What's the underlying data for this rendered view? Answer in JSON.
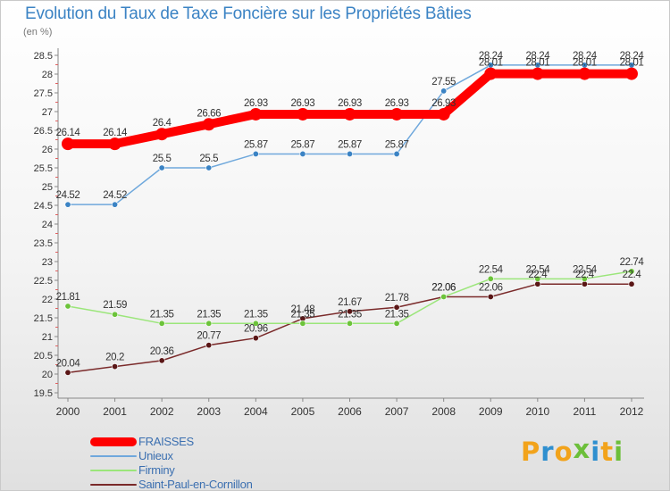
{
  "chart_data": {
    "type": "line",
    "title": "Evolution du Taux de Taxe Foncière sur les Propriétés Bâties",
    "unit_label": "(en %)",
    "x": [
      "2000",
      "2001",
      "2002",
      "2003",
      "2004",
      "2005",
      "2006",
      "2007",
      "2008",
      "2009",
      "2010",
      "2011",
      "2012"
    ],
    "ylim": [
      19.5,
      28.5
    ],
    "yticks": [
      "19.5",
      "20",
      "20.5",
      "21",
      "21.5",
      "22",
      "22.5",
      "23",
      "23.5",
      "24",
      "24.5",
      "25",
      "25.5",
      "26",
      "26.5",
      "27",
      "27.5",
      "28",
      "28.5"
    ],
    "grid": false,
    "legend_position": "bottom-left",
    "series": [
      {
        "name": "FRAISSES",
        "color": "#ff0000",
        "style": "thick",
        "values": [
          26.14,
          26.14,
          26.4,
          26.66,
          26.93,
          26.93,
          26.93,
          26.93,
          26.93,
          28.01,
          28.01,
          28.01,
          28.01
        ],
        "labels": [
          "26.14",
          "26.14",
          "26.4",
          "26.66",
          "26.93",
          "26.93",
          "26.93",
          "26.93",
          "26.93",
          "28.01",
          "28.01",
          "28.01",
          "28.01"
        ]
      },
      {
        "name": "Unieux",
        "color": "#6fa8dc",
        "marker_color": "#3b83c4",
        "style": "thin",
        "values": [
          24.52,
          24.52,
          25.5,
          25.5,
          25.87,
          25.87,
          25.87,
          25.87,
          27.55,
          28.24,
          28.24,
          28.24,
          28.24
        ],
        "labels": [
          "24.52",
          "24.52",
          "25.5",
          "25.5",
          "25.87",
          "25.87",
          "25.87",
          "25.87",
          "27.55",
          "28.24",
          "28.24",
          "28.24",
          "28.24"
        ]
      },
      {
        "name": "Firminy",
        "color": "#9be67a",
        "marker_color": "#6cc33a",
        "style": "thin",
        "values": [
          21.81,
          21.59,
          21.35,
          21.35,
          21.35,
          21.35,
          21.35,
          21.35,
          22.06,
          22.54,
          22.54,
          22.54,
          22.74
        ],
        "labels": [
          "21.81",
          "21.59",
          "21.35",
          "21.35",
          "21.35",
          "21.35",
          "21.35",
          "21.35",
          "22.06",
          "22.54",
          "22.54",
          "22.54",
          "22.74"
        ]
      },
      {
        "name": "Saint-Paul-en-Cornillon",
        "color": "#7a2a2a",
        "marker_color": "#5a1616",
        "style": "thin",
        "values": [
          20.04,
          20.2,
          20.36,
          20.77,
          20.96,
          21.48,
          21.67,
          21.78,
          22.06,
          22.06,
          22.4,
          22.4,
          22.4
        ],
        "labels": [
          "20.04",
          "20.2",
          "20.36",
          "20.77",
          "20.96",
          "21.48",
          "21.67",
          "21.78",
          "22.06",
          "22.06",
          "22.4",
          "22.4",
          "22.4"
        ]
      }
    ]
  },
  "legend": {
    "items": [
      {
        "label": "FRAISSES",
        "color": "#ff0000"
      },
      {
        "label": "Unieux",
        "color": "#6fa8dc"
      },
      {
        "label": "Firminy",
        "color": "#9be67a"
      },
      {
        "label": "Saint-Paul-en-Cornillon",
        "color": "#7a2a2a"
      }
    ]
  },
  "logo": {
    "letters": [
      "P",
      "r",
      "o",
      "x",
      "i",
      "t",
      "i"
    ],
    "colors": [
      "#f2a31b",
      "#2f8fcf",
      "#f2a31b",
      "#6cbf3a",
      "#2f8fcf",
      "#f2a31b",
      "#6cbf3a"
    ]
  }
}
